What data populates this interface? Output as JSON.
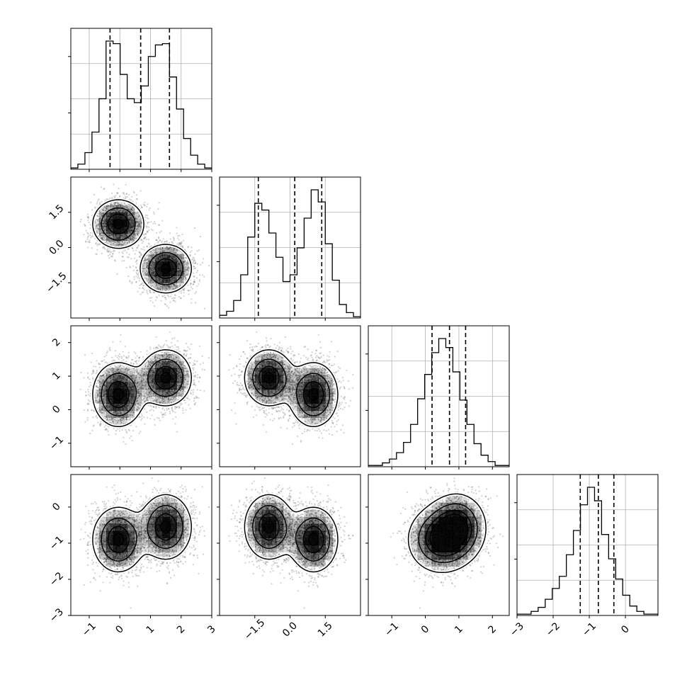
{
  "chart_data": {
    "type": "corner",
    "grid": true,
    "variables": 4,
    "axes": {
      "x0": {
        "range": [
          -1.6,
          3.0
        ],
        "ticks": [
          -1,
          0,
          1,
          2,
          3
        ],
        "tick_labels": [
          "−1",
          "0",
          "1",
          "2",
          "3"
        ]
      },
      "x1": {
        "range": [
          -3.0,
          3.0
        ],
        "ticks": [
          -1.5,
          0.0,
          1.5
        ],
        "tick_labels": [
          "−1.5",
          "0.0",
          "1.5"
        ]
      },
      "x2": {
        "range": [
          -1.7,
          2.5
        ],
        "ticks": [
          -1,
          0,
          1,
          2
        ],
        "tick_labels": [
          "−1",
          "0",
          "1",
          "2"
        ]
      },
      "x3": {
        "range": [
          -3.0,
          0.9
        ],
        "ticks": [
          -3,
          -2,
          -1,
          0
        ],
        "tick_labels": [
          "−3",
          "−2",
          "−1",
          "0"
        ]
      }
    },
    "quantiles": {
      "x0": [
        -0.32,
        0.68,
        1.62
      ],
      "x1": [
        -1.35,
        0.2,
        1.35
      ],
      "x2": [
        0.2,
        0.72,
        1.2
      ],
      "x3": [
        -1.25,
        -0.75,
        -0.32
      ]
    },
    "histograms": {
      "x0": [
        0.01,
        0.04,
        0.13,
        0.29,
        0.55,
        1.0,
        0.98,
        0.74,
        0.55,
        0.52,
        0.65,
        0.88,
        0.97,
        0.98,
        0.72,
        0.47,
        0.24,
        0.11,
        0.04,
        0.01
      ],
      "x1": [
        0.02,
        0.05,
        0.13,
        0.32,
        0.6,
        0.85,
        0.8,
        0.63,
        0.45,
        0.27,
        0.32,
        0.52,
        0.74,
        0.95,
        0.86,
        0.55,
        0.28,
        0.1,
        0.04,
        0.01
      ],
      "x2": [
        0.01,
        0.01,
        0.03,
        0.06,
        0.11,
        0.19,
        0.33,
        0.53,
        0.72,
        0.89,
        1.0,
        0.93,
        0.74,
        0.52,
        0.33,
        0.18,
        0.09,
        0.04,
        0.01,
        0.01
      ],
      "x3": [
        0.01,
        0.01,
        0.03,
        0.06,
        0.12,
        0.2,
        0.29,
        0.45,
        0.63,
        0.82,
        0.95,
        0.85,
        0.6,
        0.42,
        0.27,
        0.15,
        0.07,
        0.03,
        0.01,
        0.01
      ]
    },
    "clusters": [
      {
        "mean": [
          -0.05,
          1.0,
          0.45,
          -0.9
        ],
        "sigma": [
          0.42,
          0.52,
          0.48,
          0.45
        ]
      },
      {
        "mean": [
          1.5,
          -0.9,
          0.95,
          -0.55
        ],
        "sigma": [
          0.42,
          0.52,
          0.42,
          0.45
        ]
      }
    ]
  }
}
